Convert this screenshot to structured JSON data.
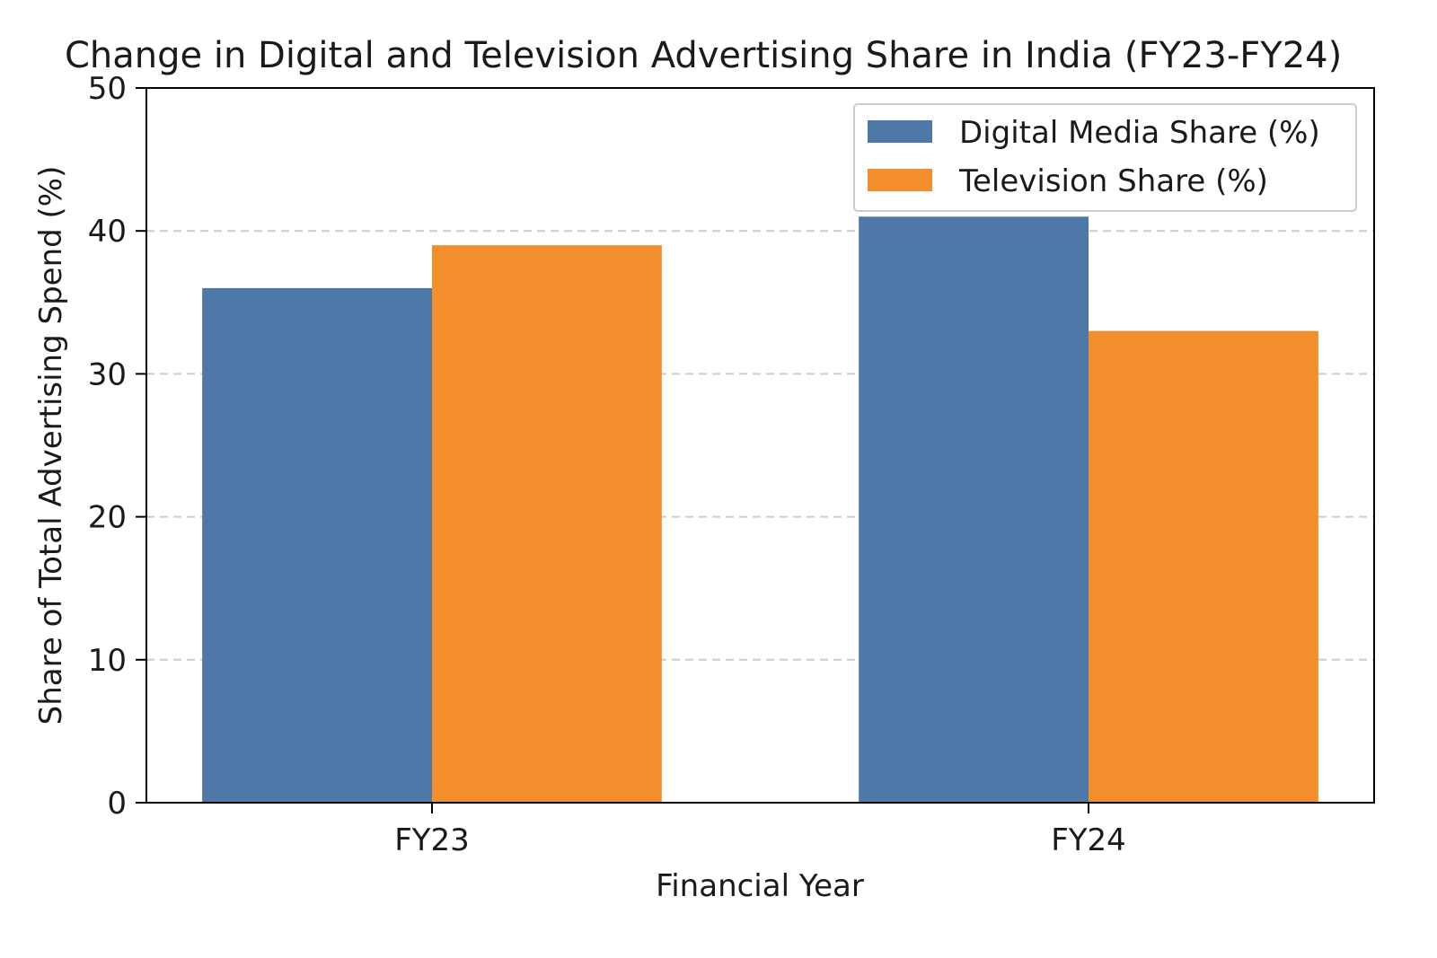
{
  "chart_data": {
    "type": "bar",
    "title": "Change in Digital and Television Advertising Share in India (FY23-FY24)",
    "xlabel": "Financial Year",
    "ylabel": "Share of Total Advertising Spend (%)",
    "categories": [
      "FY23",
      "FY24"
    ],
    "series": [
      {
        "name": "Digital Media Share (%)",
        "values": [
          36,
          41
        ],
        "color": "#4e78a8"
      },
      {
        "name": "Television Share (%)",
        "values": [
          39,
          33
        ],
        "color": "#f28e2c"
      }
    ],
    "ylim": [
      0,
      50
    ],
    "yticks": [
      0,
      10,
      20,
      30,
      40,
      50
    ],
    "grid": "y-dashed",
    "legend_position": "top-right"
  }
}
